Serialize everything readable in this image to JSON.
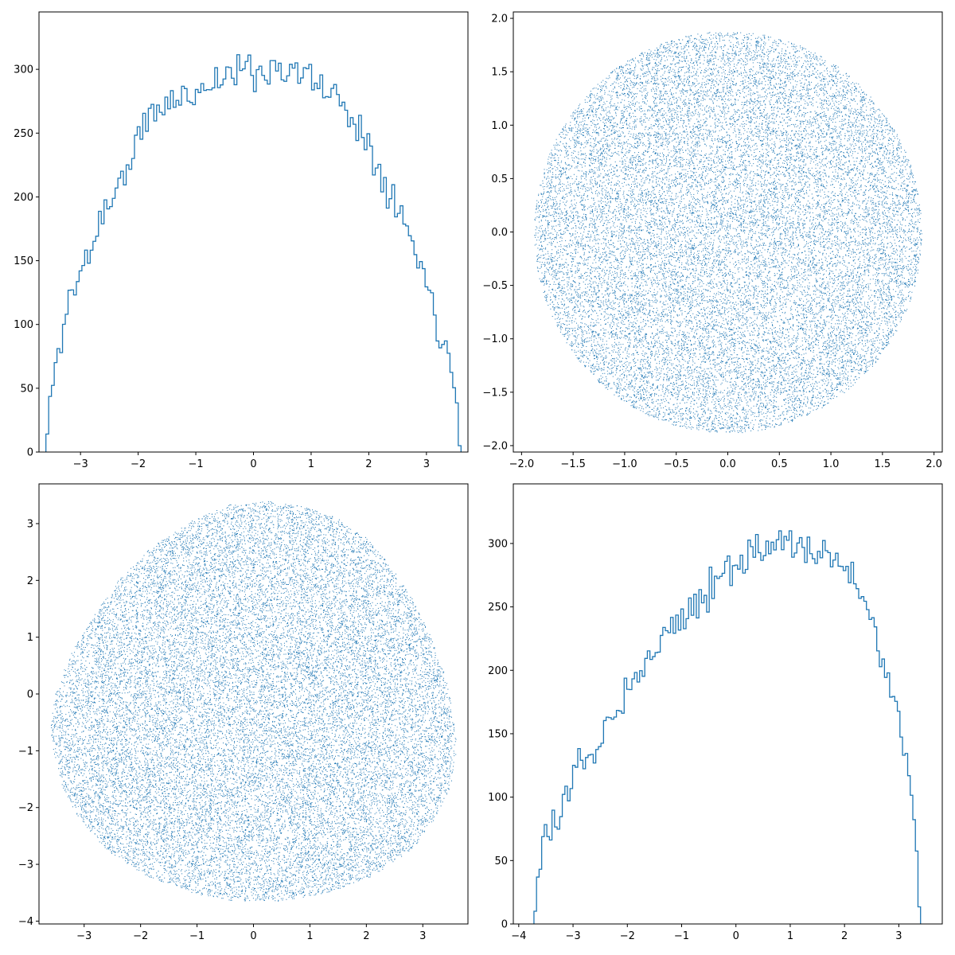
{
  "colors": {
    "series": "#1f77b4",
    "axes": "#000000",
    "background": "#ffffff"
  },
  "chart_data": [
    {
      "type": "histogram",
      "position": "top-left",
      "grid": false,
      "legend": "none",
      "xlim": [
        -3.72,
        3.72
      ],
      "ylim": [
        0,
        345
      ],
      "xticks": [
        -3,
        -2,
        -1,
        0,
        1,
        2,
        3
      ],
      "yticks": [
        0,
        50,
        100,
        150,
        200,
        250,
        300
      ],
      "bin_range": [
        -3.6,
        3.6
      ],
      "bin_count": 150,
      "anchors": [
        [
          -3.6,
          0
        ],
        [
          -3.55,
          25
        ],
        [
          -3.5,
          52
        ],
        [
          -3.4,
          73
        ],
        [
          -3.3,
          100
        ],
        [
          -3.2,
          118
        ],
        [
          -3.0,
          140
        ],
        [
          -2.8,
          162
        ],
        [
          -2.6,
          190
        ],
        [
          -2.4,
          202
        ],
        [
          -2.2,
          222
        ],
        [
          -2.0,
          245
        ],
        [
          -1.8,
          263
        ],
        [
          -1.6,
          270
        ],
        [
          -1.4,
          275
        ],
        [
          -1.2,
          278
        ],
        [
          -1.0,
          283
        ],
        [
          -0.8,
          288
        ],
        [
          -0.5,
          295
        ],
        [
          -0.2,
          300
        ],
        [
          0.0,
          298
        ],
        [
          0.2,
          300
        ],
        [
          0.5,
          302
        ],
        [
          0.8,
          297
        ],
        [
          1.0,
          292
        ],
        [
          1.2,
          286
        ],
        [
          1.4,
          280
        ],
        [
          1.6,
          270
        ],
        [
          1.8,
          258
        ],
        [
          2.0,
          240
        ],
        [
          2.2,
          222
        ],
        [
          2.4,
          205
        ],
        [
          2.6,
          182
        ],
        [
          2.8,
          158
        ],
        [
          3.0,
          135
        ],
        [
          3.1,
          118
        ],
        [
          3.2,
          100
        ],
        [
          3.3,
          85
        ],
        [
          3.4,
          75
        ],
        [
          3.5,
          52
        ],
        [
          3.55,
          40
        ],
        [
          3.6,
          0
        ]
      ],
      "seed": 11,
      "noise": 14
    },
    {
      "type": "scatter",
      "position": "top-right",
      "grid": false,
      "legend": "none",
      "xlim": [
        -2.08,
        2.08
      ],
      "ylim": [
        -2.06,
        2.06
      ],
      "xticks": [
        -2.0,
        -1.5,
        -1.0,
        -0.5,
        0.0,
        0.5,
        1.0,
        1.5,
        2.0
      ],
      "yticks": [
        -2.0,
        -1.5,
        -1.0,
        -0.5,
        0.0,
        0.5,
        1.0,
        1.5,
        2.0
      ],
      "tick_decimals": 1,
      "shape": "disk",
      "center": [
        0,
        0
      ],
      "radius": 1.88,
      "point_count": 22000,
      "seed": 23
    },
    {
      "type": "scatter",
      "position": "bottom-left",
      "grid": false,
      "legend": "none",
      "xlim": [
        -3.8,
        3.8
      ],
      "ylim": [
        -4.05,
        3.7
      ],
      "xticks": [
        -3,
        -2,
        -1,
        0,
        1,
        2,
        3
      ],
      "yticks": [
        -4,
        -3,
        -2,
        -1,
        0,
        1,
        2,
        3
      ],
      "shape": "polygon",
      "outline": [
        [
          0.3,
          3.4
        ],
        [
          0.9,
          3.3
        ],
        [
          1.5,
          3.1
        ],
        [
          2.0,
          2.75
        ],
        [
          2.4,
          2.3
        ],
        [
          2.8,
          1.7
        ],
        [
          3.15,
          1.0
        ],
        [
          3.4,
          0.3
        ],
        [
          3.55,
          -0.4
        ],
        [
          3.6,
          -1.0
        ],
        [
          3.5,
          -1.6
        ],
        [
          3.2,
          -2.2
        ],
        [
          2.8,
          -2.75
        ],
        [
          2.1,
          -3.2
        ],
        [
          1.3,
          -3.5
        ],
        [
          0.4,
          -3.65
        ],
        [
          -0.3,
          -3.65
        ],
        [
          -1.1,
          -3.5
        ],
        [
          -1.9,
          -3.2
        ],
        [
          -2.6,
          -2.75
        ],
        [
          -3.1,
          -2.2
        ],
        [
          -3.4,
          -1.6
        ],
        [
          -3.55,
          -1.0
        ],
        [
          -3.6,
          -0.6
        ],
        [
          -3.55,
          -0.1
        ],
        [
          -3.3,
          0.6
        ],
        [
          -2.9,
          1.3
        ],
        [
          -2.4,
          2.0
        ],
        [
          -1.8,
          2.6
        ],
        [
          -1.1,
          3.05
        ],
        [
          -0.4,
          3.35
        ]
      ],
      "point_count": 24000,
      "seed": 37
    },
    {
      "type": "histogram",
      "position": "bottom-right",
      "grid": false,
      "legend": "none",
      "xlim": [
        -4.1,
        3.8
      ],
      "ylim": [
        0,
        347
      ],
      "xticks": [
        -4,
        -3,
        -2,
        -1,
        0,
        1,
        2,
        3
      ],
      "yticks": [
        0,
        50,
        100,
        150,
        200,
        250,
        300
      ],
      "bin_range": [
        -3.72,
        3.4
      ],
      "bin_count": 150,
      "anchors": [
        [
          -3.72,
          0
        ],
        [
          -3.68,
          30
        ],
        [
          -3.6,
          45
        ],
        [
          -3.5,
          65
        ],
        [
          -3.3,
          80
        ],
        [
          -3.1,
          105
        ],
        [
          -2.9,
          122
        ],
        [
          -2.7,
          133
        ],
        [
          -2.5,
          145
        ],
        [
          -2.3,
          162
        ],
        [
          -2.1,
          180
        ],
        [
          -1.9,
          195
        ],
        [
          -1.7,
          205
        ],
        [
          -1.5,
          218
        ],
        [
          -1.3,
          228
        ],
        [
          -1.1,
          237
        ],
        [
          -0.9,
          246
        ],
        [
          -0.7,
          255
        ],
        [
          -0.5,
          265
        ],
        [
          -0.3,
          277
        ],
        [
          0.0,
          285
        ],
        [
          0.3,
          292
        ],
        [
          0.6,
          298
        ],
        [
          0.9,
          300
        ],
        [
          1.2,
          297
        ],
        [
          1.5,
          292
        ],
        [
          1.8,
          286
        ],
        [
          2.0,
          280
        ],
        [
          2.2,
          270
        ],
        [
          2.4,
          253
        ],
        [
          2.6,
          225
        ],
        [
          2.8,
          190
        ],
        [
          3.0,
          158
        ],
        [
          3.1,
          140
        ],
        [
          3.2,
          118
        ],
        [
          3.3,
          85
        ],
        [
          3.35,
          50
        ],
        [
          3.4,
          0
        ]
      ],
      "seed": 53,
      "noise": 14
    }
  ]
}
